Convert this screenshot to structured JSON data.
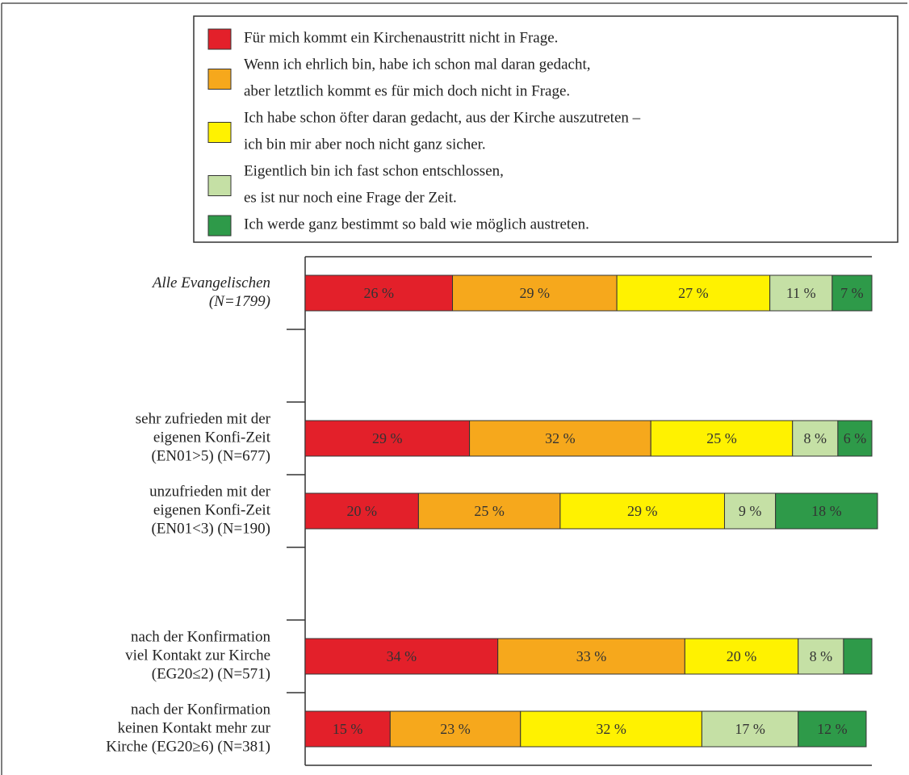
{
  "chart_data": {
    "type": "stacked-barh",
    "categories": [
      [
        "Alle Evangelischen",
        "(N=1799)"
      ],
      null,
      [
        "sehr zufrieden mit der",
        "eigenen Konfi-Zeit",
        "(EN01>5) (N=677)"
      ],
      [
        "unzufrieden mit der",
        "eigenen Konfi-Zeit",
        "(EN01<3) (N=190)"
      ],
      null,
      [
        "nach der Konfirmation",
        "viel Kontakt zur Kirche",
        "(EG20≤2) (N=571)"
      ],
      [
        "nach der Konfirmation",
        "keinen Kontakt mehr zur",
        "Kirche (EG20≥6) (N=381)"
      ]
    ],
    "xlim": [
      0,
      100
    ],
    "series": [
      {
        "name": [
          "Für mich kommt ein Kirchenaustritt nicht in Frage."
        ],
        "color": "#e3202a",
        "values": [
          26,
          null,
          29,
          20,
          null,
          34,
          15
        ],
        "value_labels": [
          "26 %",
          null,
          "29 %",
          "20 %",
          null,
          "34 %",
          "15 %"
        ]
      },
      {
        "name": [
          "Wenn ich ehrlich bin, habe ich schon mal daran gedacht,",
          "aber letztlich kommt es für mich doch nicht in Frage."
        ],
        "color": "#f6a81c",
        "values": [
          29,
          null,
          32,
          25,
          null,
          33,
          23
        ],
        "value_labels": [
          "29 %",
          null,
          "32 %",
          "25 %",
          null,
          "33 %",
          "23 %"
        ]
      },
      {
        "name": [
          "Ich habe schon öfter daran gedacht, aus der Kirche auszutreten –",
          "ich bin mir aber noch nicht ganz sicher."
        ],
        "color": "#fff200",
        "values": [
          27,
          null,
          25,
          29,
          null,
          20,
          32
        ],
        "value_labels": [
          "27 %",
          null,
          "25 %",
          "29 %",
          null,
          "20 %",
          "32 %"
        ]
      },
      {
        "name": [
          "Eigentlich bin ich fast schon entschlossen,",
          "es ist nur noch eine Frage der Zeit."
        ],
        "color": "#c5e0a5",
        "values": [
          11,
          null,
          8,
          9,
          null,
          8,
          17
        ],
        "value_labels": [
          "11 %",
          null,
          "8 %",
          "9 %",
          null,
          "8 %",
          "17 %"
        ]
      },
      {
        "name": [
          "Ich werde ganz bestimmt so bald wie möglich austreten."
        ],
        "color": "#2e9a49",
        "values": [
          7,
          null,
          6,
          18,
          null,
          5,
          12
        ],
        "value_labels": [
          "7 %",
          null,
          "6 %",
          "18 %",
          null,
          null,
          "12 %"
        ]
      }
    ]
  }
}
